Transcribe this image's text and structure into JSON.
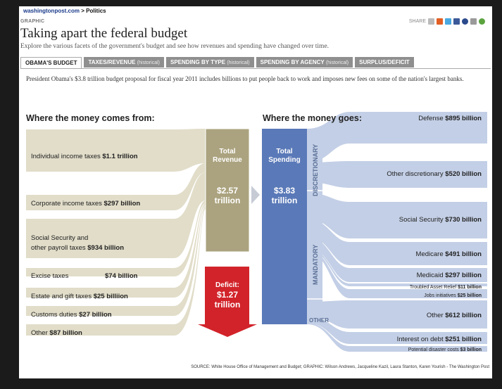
{
  "breadcrumb": {
    "site": "washingtonpost.com",
    "sep": ">",
    "section": "Politics"
  },
  "graphic_label": "GRAPHIC",
  "share_label": "SHARE",
  "title": "Taking apart the federal budget",
  "subtitle": "Explore the various facets of the government's budget and see how revenues and spending have changed over time.",
  "tabs": [
    {
      "label": "OBAMA'S BUDGET",
      "note": ""
    },
    {
      "label": "TAXES/REVENUE",
      "note": "(historical)"
    },
    {
      "label": "SPENDING BY TYPE",
      "note": "(historical)"
    },
    {
      "label": "SPENDING BY AGENCY",
      "note": "(historical)"
    },
    {
      "label": "SURPLUS/DEFICIT",
      "note": ""
    }
  ],
  "intro": "President Obama's $3.8 trillion budget proposal for fiscal year 2011 includes billions to put people back to work and imposes new fees on some of the nation's largest banks.",
  "diagram": {
    "left_heading": "Where the money comes from:",
    "right_heading": "Where the money goes:",
    "revenue_box": {
      "title": "Total Revenue",
      "value": "$2.57 trillion"
    },
    "spending_box": {
      "title": "Total Spending",
      "value": "$3.83 trillion"
    },
    "deficit_box": {
      "title": "Deficit:",
      "value": "$1.27 trillion"
    },
    "sources": [
      {
        "name": "Individual income taxes",
        "amount": "$1.1 trillion"
      },
      {
        "name": "Corporate income taxes",
        "amount": "$297 billion"
      },
      {
        "name": "Social Security and other payroll taxes",
        "amount": "$934 billion"
      },
      {
        "name": "Excise taxes",
        "amount": "$74 billion"
      },
      {
        "name": "Estate and gift taxes",
        "amount": "$25 billiion"
      },
      {
        "name": "Customs duties",
        "amount": "$27 billion"
      },
      {
        "name": "Other",
        "amount": "$87 billion"
      }
    ],
    "categories": {
      "discretionary": "DISCRETIONARY",
      "mandatory": "MANDATORY",
      "other": "OTHER"
    },
    "uses": [
      {
        "name": "Defense",
        "amount": "$895 billion"
      },
      {
        "name": "Other discretionary",
        "amount": "$520 billion"
      },
      {
        "name": "Social Security",
        "amount": "$730 billion"
      },
      {
        "name": "Medicare",
        "amount": "$491 billion"
      },
      {
        "name": "Medicaid",
        "amount": "$297 billion"
      },
      {
        "name": "Troubled Asset Relief",
        "amount": "$11 billion"
      },
      {
        "name": "Jobs initiatives",
        "amount": "$25 billion"
      },
      {
        "name": "Other",
        "amount": "$612 billion"
      },
      {
        "name": "Interest on debt",
        "amount": "$251 billion"
      },
      {
        "name": "Potential disaster costs",
        "amount": "$3 billion"
      }
    ]
  },
  "colors": {
    "revenue": "#aba37f",
    "revenue_light": "#e1ddc9",
    "spending": "#5a79b8",
    "spending_light": "#c3cfe6",
    "deficit": "#d2232a"
  },
  "source": "SOURCE: White House Office of Management and Budget; GRAPHIC: Wilson Andrews, Jacqueline Kazil, Laura Stanton, Karen Yourish - The Washington Post"
}
